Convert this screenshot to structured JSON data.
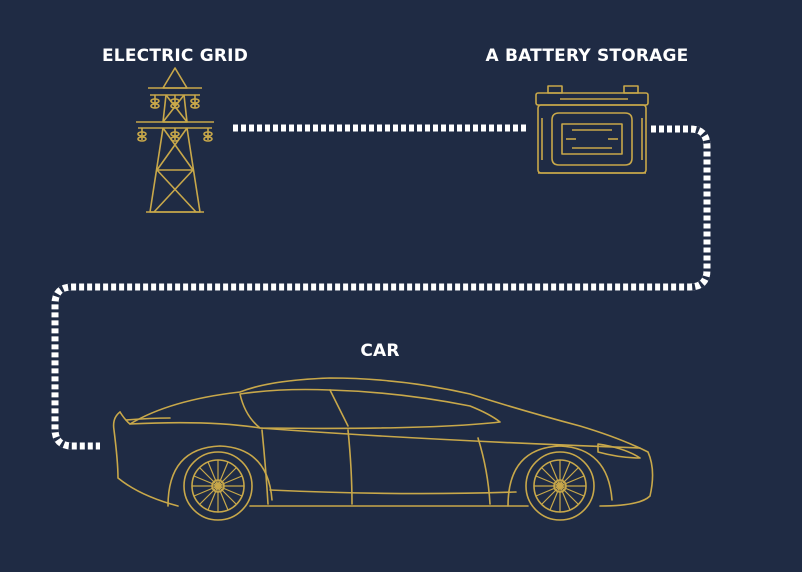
{
  "nodes": {
    "grid": {
      "label": "ELECTRIC GRID",
      "icon": "power-pylon-icon"
    },
    "battery": {
      "label": "A BATTERY STORAGE",
      "icon": "car-battery-icon"
    },
    "car": {
      "label": "CAR",
      "icon": "sports-car-icon"
    }
  },
  "connections": [
    {
      "from": "grid",
      "to": "battery",
      "style": "striped-cable"
    },
    {
      "from": "battery",
      "to": "car",
      "style": "striped-cable"
    }
  ],
  "colors": {
    "background": "#1f2b44",
    "line_art": "#c8a84a",
    "label": "#ffffff",
    "cable_stripe_light": "#ffffff",
    "cable_stripe_dark": "#1f2b44"
  }
}
